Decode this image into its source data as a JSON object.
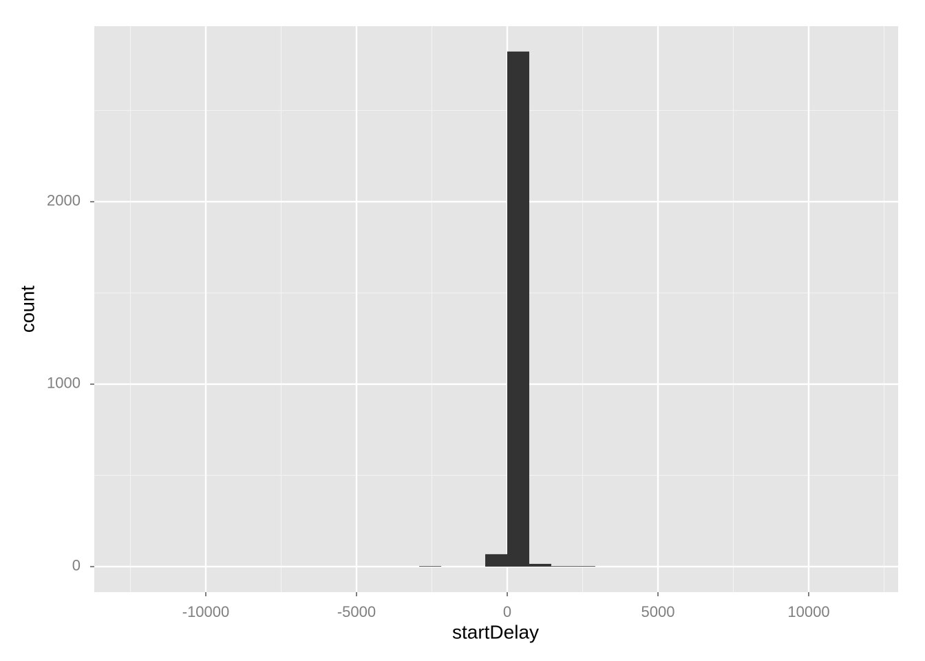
{
  "chart_data": {
    "type": "histogram",
    "x_label": "startDelay",
    "y_label": "count",
    "bins": [
      -2920,
      -2190,
      -1460,
      -730,
      0,
      730,
      1460,
      2190,
      2920
    ],
    "values": [
      3,
      0,
      0,
      68,
      2823,
      15,
      3,
      3
    ],
    "color": "#333333",
    "xlim": [
      -13699,
      12968
    ],
    "ylim": [
      -140,
      2962
    ],
    "xticks": [
      -10000,
      -5000,
      0,
      5000,
      10000
    ],
    "yticks": [
      0,
      1000,
      2000
    ],
    "x_minor_ticks": [
      -12500,
      -7500,
      -2500,
      2500,
      7500,
      12500
    ],
    "y_minor_ticks": [
      500,
      1500,
      2500
    ],
    "grid": true
  }
}
